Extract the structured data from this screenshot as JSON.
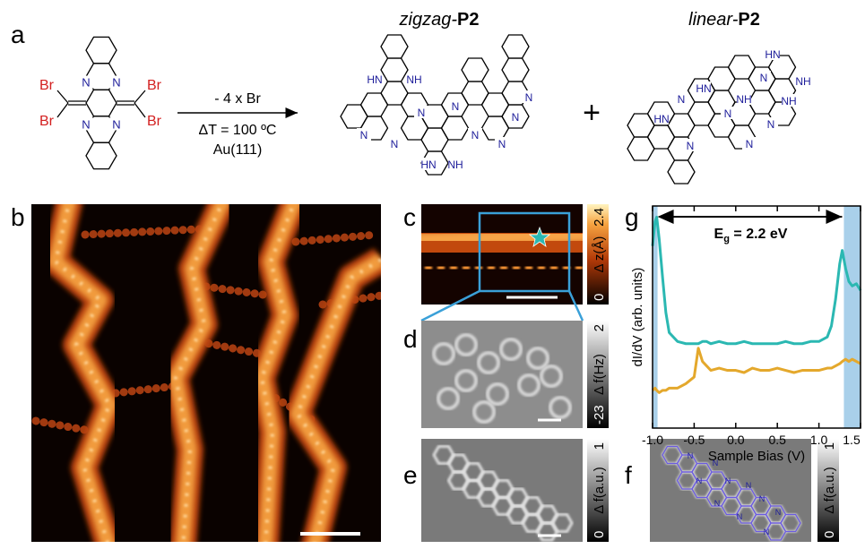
{
  "panel_labels": [
    "a",
    "b",
    "c",
    "d",
    "e",
    "f",
    "g"
  ],
  "reaction": {
    "conditions": [
      "- 4 x Br",
      "ΔT = 100 ºC",
      "Au(111)"
    ],
    "plus": "+",
    "precursor_atoms": [
      "Br",
      "Br",
      "Br",
      "Br",
      "N",
      "N",
      "N",
      "N"
    ],
    "zigzag": {
      "name_prefix": "zigzag-",
      "name_bold": "P2",
      "atoms": [
        "HN",
        "NH",
        "N",
        "N",
        "N",
        "N",
        "N",
        "N",
        "HN",
        "NH",
        "N",
        "N"
      ]
    },
    "linear": {
      "name_prefix": "linear-",
      "name_bold": "P2",
      "atoms": [
        "HN",
        "N",
        "N",
        "HN",
        "N",
        "NH",
        "N",
        "N",
        "HN",
        "NH",
        "N",
        "NH"
      ]
    }
  },
  "colorbars": {
    "c": {
      "top": "2.4",
      "label": "Δ z(Å)",
      "bottom": "0"
    },
    "d": {
      "top": "2",
      "label": "Δ f(Hz)",
      "bottom": "-23"
    },
    "e": {
      "top": "1",
      "label": "Δ f(a.u.)",
      "bottom": "0"
    },
    "f": {
      "top": "1",
      "label": "Δ f(a.u.)",
      "bottom": "0"
    }
  },
  "panel_f_atoms": [
    "N",
    "N",
    "N",
    "N",
    "N",
    "N",
    "N",
    "N",
    "N",
    "N"
  ],
  "chart_data": {
    "type": "line",
    "x_label": "Sample Bias (V)",
    "y_label": "dI/dV (arb. units)",
    "annotation": {
      "symbol": "E",
      "subscript": "g",
      "text": " = 2.2 eV"
    },
    "x": [
      -1.0,
      -0.97,
      -0.95,
      -0.92,
      -0.88,
      -0.84,
      -0.8,
      -0.7,
      -0.6,
      -0.5,
      -0.45,
      -0.4,
      -0.35,
      -0.3,
      -0.2,
      -0.1,
      0,
      0.1,
      0.2,
      0.3,
      0.4,
      0.5,
      0.6,
      0.7,
      0.8,
      0.9,
      1.0,
      1.1,
      1.15,
      1.2,
      1.25,
      1.28,
      1.32,
      1.36,
      1.4,
      1.45,
      1.5
    ],
    "series": [
      {
        "color": "#2bb8b2",
        "values": [
          8.2,
          9.3,
          9.5,
          8.5,
          6.8,
          5.2,
          4.3,
          3.9,
          3.8,
          3.8,
          3.8,
          3.9,
          3.9,
          3.8,
          3.9,
          3.8,
          3.8,
          3.9,
          3.8,
          3.8,
          3.8,
          3.8,
          3.9,
          3.8,
          3.8,
          3.9,
          3.9,
          4.1,
          4.6,
          5.8,
          7.4,
          8.0,
          7.2,
          6.6,
          6.4,
          6.5,
          6.2
        ]
      },
      {
        "color": "#e4a82c",
        "values": [
          1.7,
          1.8,
          1.7,
          1.6,
          1.7,
          1.7,
          1.8,
          1.8,
          2.0,
          2.3,
          3.6,
          3.0,
          2.8,
          2.6,
          2.7,
          2.6,
          2.6,
          2.5,
          2.7,
          2.6,
          2.6,
          2.7,
          2.6,
          2.5,
          2.6,
          2.6,
          2.6,
          2.7,
          2.7,
          2.8,
          2.9,
          3.0,
          3.1,
          3.0,
          3.1,
          3.0,
          2.9
        ]
      }
    ],
    "bands": [
      {
        "from": -1.0,
        "to": -0.94
      },
      {
        "from": 1.3,
        "to": 1.5
      }
    ],
    "band_color": "#a9d0ea",
    "xlim": [
      -1.0,
      1.5
    ],
    "xticks": [
      {
        "value": -1,
        "label": "-1.0"
      },
      -0.5,
      {
        "value": 0,
        "label": "0.0"
      },
      0.5,
      {
        "value": 1,
        "label": "1.0"
      },
      1.5
    ],
    "ylim": [
      0,
      10
    ]
  }
}
